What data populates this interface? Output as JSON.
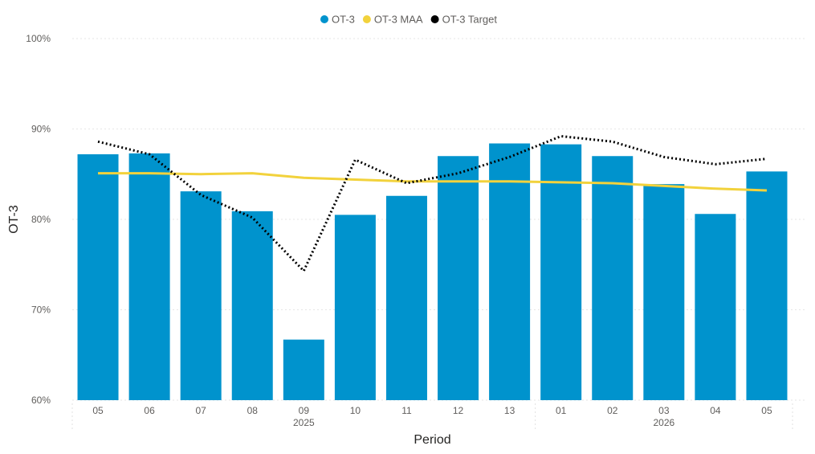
{
  "chart_data": {
    "type": "bar",
    "title": "",
    "xlabel": "Period",
    "ylabel": "OT-3",
    "ylim": [
      60,
      100
    ],
    "y_ticks": [
      60,
      70,
      80,
      90,
      100
    ],
    "y_tick_labels": [
      "60%",
      "70%",
      "80%",
      "90%",
      "100%"
    ],
    "grid": true,
    "legend_position": "top-center",
    "categories": [
      "05",
      "06",
      "07",
      "08",
      "09",
      "10",
      "11",
      "12",
      "13",
      "01",
      "02",
      "03",
      "04",
      "05"
    ],
    "year_groups": [
      {
        "label": "2025",
        "start": 0,
        "end": 8
      },
      {
        "label": "2026",
        "start": 9,
        "end": 13
      }
    ],
    "series": [
      {
        "name": "OT-3",
        "type": "bar",
        "color": "#0093cd",
        "values": [
          87.2,
          87.3,
          83.1,
          80.9,
          66.7,
          80.5,
          82.6,
          87.0,
          88.4,
          88.3,
          87.0,
          83.9,
          80.6,
          85.3
        ]
      },
      {
        "name": "OT-3 MAA",
        "type": "line",
        "color": "#f2d23c",
        "values": [
          85.1,
          85.1,
          85.0,
          85.1,
          84.6,
          84.4,
          84.2,
          84.2,
          84.2,
          84.1,
          84.0,
          83.7,
          83.4,
          83.2
        ]
      },
      {
        "name": "OT-3 Target",
        "type": "line-dotted",
        "color": "#000000",
        "values": [
          88.6,
          87.2,
          82.7,
          80.2,
          74.3,
          86.6,
          84.0,
          85.1,
          86.9,
          89.2,
          88.6,
          86.9,
          86.1,
          86.7
        ]
      }
    ]
  }
}
